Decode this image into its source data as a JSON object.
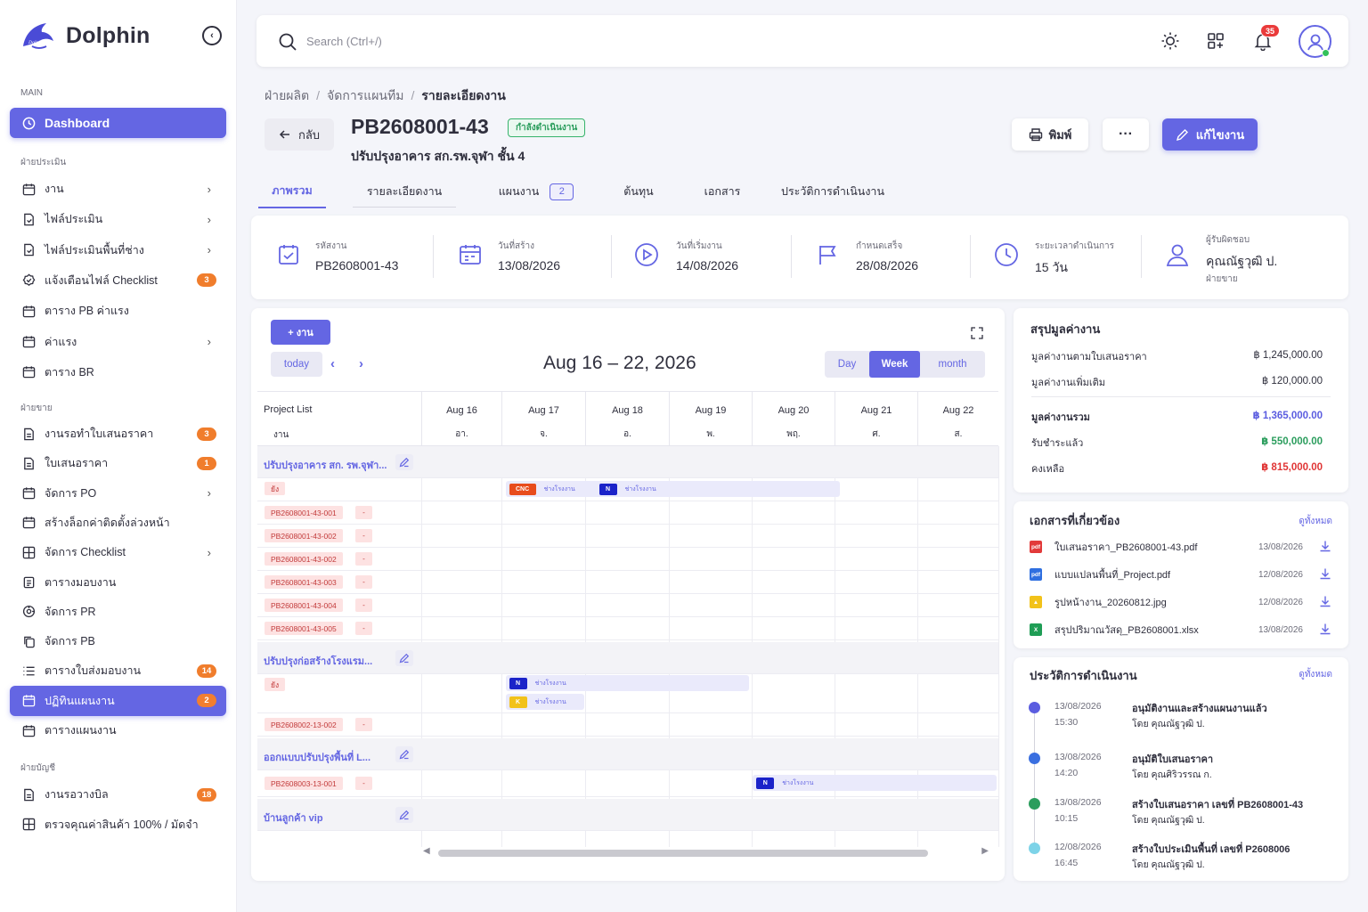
{
  "app": {
    "name": "Dolphin",
    "logo_text": "Dolphin"
  },
  "sidebar": {
    "section_main": "MAIN",
    "dashboard": "Dashboard",
    "section_assess": "ฝ่ายประเมิน",
    "assess_items": [
      {
        "label": "งาน",
        "icon": "calendar-icon",
        "chevron": true
      },
      {
        "label": "ไฟล์ประเมิน",
        "icon": "file-icon",
        "chevron": true
      },
      {
        "label": "ไฟล์ประเมินพื้นที่ช่าง",
        "icon": "file-icon",
        "chevron": true
      },
      {
        "label": "แจ้งเตือนไฟล์ Checklist",
        "icon": "badge-check-icon",
        "badge": "3"
      },
      {
        "label": "ตาราง PB ค่าแรง",
        "icon": "calendar-icon"
      },
      {
        "label": "ค่าแรง",
        "icon": "calendar-icon",
        "chevron": true
      },
      {
        "label": "ตาราง BR",
        "icon": "calendar-icon"
      }
    ],
    "section_sales": "ฝ่ายขาย",
    "sales_items": [
      {
        "label": "งานรอทำใบเสนอราคา",
        "icon": "file-text-icon",
        "badge": "3"
      },
      {
        "label": "ใบเสนอราคา",
        "icon": "file-text-icon",
        "badge": "1"
      },
      {
        "label": "จัดการ PO",
        "icon": "calendar-icon",
        "chevron": true
      },
      {
        "label": "สร้างล็อกค่าติดตั้งล่วงหน้า",
        "icon": "calendar-icon"
      },
      {
        "label": "จัดการ Checklist",
        "icon": "grid-icon",
        "chevron": true
      },
      {
        "label": "ตารางมอบงาน",
        "icon": "clipboard-icon"
      },
      {
        "label": "จัดการ PR",
        "icon": "settings-icon"
      },
      {
        "label": "จัดการ PB",
        "icon": "copy-icon"
      },
      {
        "label": "ตารางใบส่งมอบงาน",
        "icon": "list-icon",
        "badge": "14"
      },
      {
        "label": "ปฏิทินแผนงาน",
        "icon": "calendar-icon",
        "badge": "2",
        "active": true
      },
      {
        "label": "ตารางแผนงาน",
        "icon": "calendar-icon"
      }
    ],
    "section_account": "ฝ่ายบัญชี",
    "account_items": [
      {
        "label": "งานรอวางบิล",
        "icon": "file-text-icon",
        "badge": "18"
      },
      {
        "label": "ตรวจคุณค่าสินค้า 100% / มัดจำ",
        "icon": "grid-icon"
      }
    ]
  },
  "topbar": {
    "search_placeholder": "Search (Ctrl+/)",
    "notif_count": "35"
  },
  "breadcrumb": [
    "ฝ่ายผลิต",
    "จัดการแผนทีม",
    "รายละเอียดงาน"
  ],
  "header": {
    "back_label": "กลับ",
    "job_no": "PB2608001-43",
    "status": "กำลังดำเนินงาน",
    "subtitle": "ปรับปรุงอาคาร สก.รพ.จุฬา ชั้น 4",
    "print_label": "พิมพ์",
    "more_label": "···",
    "edit_label": "แก้ไขงาน"
  },
  "tabs": [
    {
      "label": "ภาพรวม",
      "active": true
    },
    {
      "label": "รายละเอียดงาน"
    },
    {
      "label": "แผนงาน",
      "count": "2"
    },
    {
      "label": "ต้นทุน"
    },
    {
      "label": "เอกสาร"
    },
    {
      "label": "ประวัติการดำเนินงาน"
    }
  ],
  "info": [
    {
      "label": "รหัสงาน",
      "value": "PB2608001-43",
      "icon": "clipboard-check-icon"
    },
    {
      "label": "วันที่สร้าง",
      "value": "13/08/2026",
      "icon": "calendar-icon"
    },
    {
      "label": "วันที่เริ่มงาน",
      "value": "14/08/2026",
      "icon": "play-circle-icon"
    },
    {
      "label": "กำหนดเสร็จ",
      "value": "28/08/2026",
      "icon": "flag-icon"
    },
    {
      "label": "ระยะเวลาดำเนินการ",
      "value": "15 วัน",
      "icon": "clock-icon"
    },
    {
      "label": "ผู้รับผิดชอบ",
      "value": "คุณณัฐวุฒิ ป.",
      "sub": "ฝ่ายขาย",
      "icon": "user-icon"
    }
  ],
  "schedule": {
    "add_label": "+ งาน",
    "today_label": "today",
    "range_title": "Aug 16 – 22, 2026",
    "views": [
      "Day",
      "Week",
      "month"
    ],
    "active_view": "Week",
    "project_list_label": "Project List",
    "work_label": "งาน",
    "days": [
      {
        "date": "Aug 16",
        "dow": "อา."
      },
      {
        "date": "Aug 17",
        "dow": "จ."
      },
      {
        "date": "Aug 18",
        "dow": "อ."
      },
      {
        "date": "Aug 19",
        "dow": "พ."
      },
      {
        "date": "Aug 20",
        "dow": "พฤ."
      },
      {
        "date": "Aug 21",
        "dow": "ศ."
      },
      {
        "date": "Aug 22",
        "dow": "ส."
      }
    ],
    "groups": [
      {
        "name": "ปรับปรุงอาคาร สก. รพ.จุฬา...",
        "tag_row_label": "ยัง",
        "bars": [
          {
            "start_day": 1,
            "end_day": 5.1,
            "tags": [
              {
                "code": "CNC",
                "color": "#e84c1c",
                "text": "ช่างโรงงาน"
              },
              {
                "code": "N",
                "color": "#1b23c9",
                "text": "ช่างโรงงาน"
              }
            ]
          }
        ],
        "items": [
          "PB2608001-43-001",
          "PB2608001-43-002",
          "PB2608001-43-002",
          "PB2608001-43-003",
          "PB2608001-43-004",
          "PB2608001-43-005"
        ]
      },
      {
        "name": "ปรับปรุงก่อสร้างโรงแรม...",
        "tag_row_label": "ยัง",
        "bars": [
          {
            "start_day": 1,
            "end_day": 4,
            "tags": [
              {
                "code": "N",
                "color": "#1b23c9",
                "text": "ช่างโรงงาน"
              }
            ]
          },
          {
            "start_day": 1,
            "end_day": 2,
            "tags": [
              {
                "code": "K",
                "color": "#f2c21a",
                "text": "ช่างโรงงาน"
              }
            ]
          }
        ],
        "items": [
          "PB2608002-13-002"
        ]
      },
      {
        "name": "ออกแบบปรับปรุงพื้นที่ L...",
        "items": [
          "PB2608003-13-001"
        ],
        "bars": [
          {
            "start_day": 4,
            "end_day": 7,
            "tags": [
              {
                "code": "N",
                "color": "#1b23c9",
                "text": "ช่างโรงงาน"
              }
            ]
          }
        ]
      },
      {
        "name": "บ้านลูกค้า vip",
        "items": []
      }
    ],
    "item_dash": "-"
  },
  "summary": {
    "title": "สรุปมูลค่างาน",
    "rows": [
      {
        "label": "มูลค่างานตามใบเสนอราคา",
        "value": "฿ 1,245,000.00"
      },
      {
        "label": "มูลค่างานเพิ่มเติม",
        "value": "฿ 120,000.00"
      }
    ],
    "total_label": "มูลค่างานรวม",
    "total_value": "฿ 1,365,000.00",
    "paid_label": "รับชำระแล้ว",
    "paid_value": "฿ 550,000.00",
    "remain_label": "คงเหลือ",
    "remain_value": "฿ 815,000.00",
    "colors": {
      "total": "#5b5de0",
      "paid": "#2b9d5d",
      "remain": "#e03535"
    }
  },
  "documents": {
    "title": "เอกสารที่เกี่ยวข้อง",
    "see_all": "ดูทั้งหมด",
    "files": [
      {
        "name": "ใบเสนอราคา_PB2608001-43.pdf",
        "date": "13/08/2026",
        "type": "pdf",
        "color": "#e23a3a"
      },
      {
        "name": "แบบแปลนพื้นที่_Project.pdf",
        "date": "12/08/2026",
        "type": "pdf",
        "color": "#2f6fe0"
      },
      {
        "name": "รูปหน้างาน_20260812.jpg",
        "date": "12/08/2026",
        "type": "img",
        "color": "#f2c21a"
      },
      {
        "name": "สรุปปริมาณวัสดุ_PB2608001.xlsx",
        "date": "13/08/2026",
        "type": "xls",
        "color": "#1f9d55"
      }
    ]
  },
  "history": {
    "title": "ประวัติการดำเนินงาน",
    "see_all": "ดูทั้งหมด",
    "events": [
      {
        "date": "13/08/2026",
        "time": "15:30",
        "title": "อนุมัติงานและสร้างแผนงานแล้ว",
        "by": "โดย คุณณัฐวุฒิ ป.",
        "color": "#5b5de0"
      },
      {
        "date": "13/08/2026",
        "time": "14:20",
        "title": "อนุมัติใบเสนอราคา",
        "by": "โดย คุณศิริวรรณ ก.",
        "color": "#3a6fe0"
      },
      {
        "date": "13/08/2026",
        "time": "10:15",
        "title": "สร้างใบเสนอราคา เลขที่ PB2608001-43",
        "by": "โดย คุณณัฐวุฒิ ป.",
        "color": "#2b9d5d"
      },
      {
        "date": "12/08/2026",
        "time": "16:45",
        "title": "สร้างใบประเมินพื้นที่ เลขที่ P2608006",
        "by": "โดย คุณณัฐวุฒิ ป.",
        "color": "#7dd3e8"
      }
    ]
  }
}
